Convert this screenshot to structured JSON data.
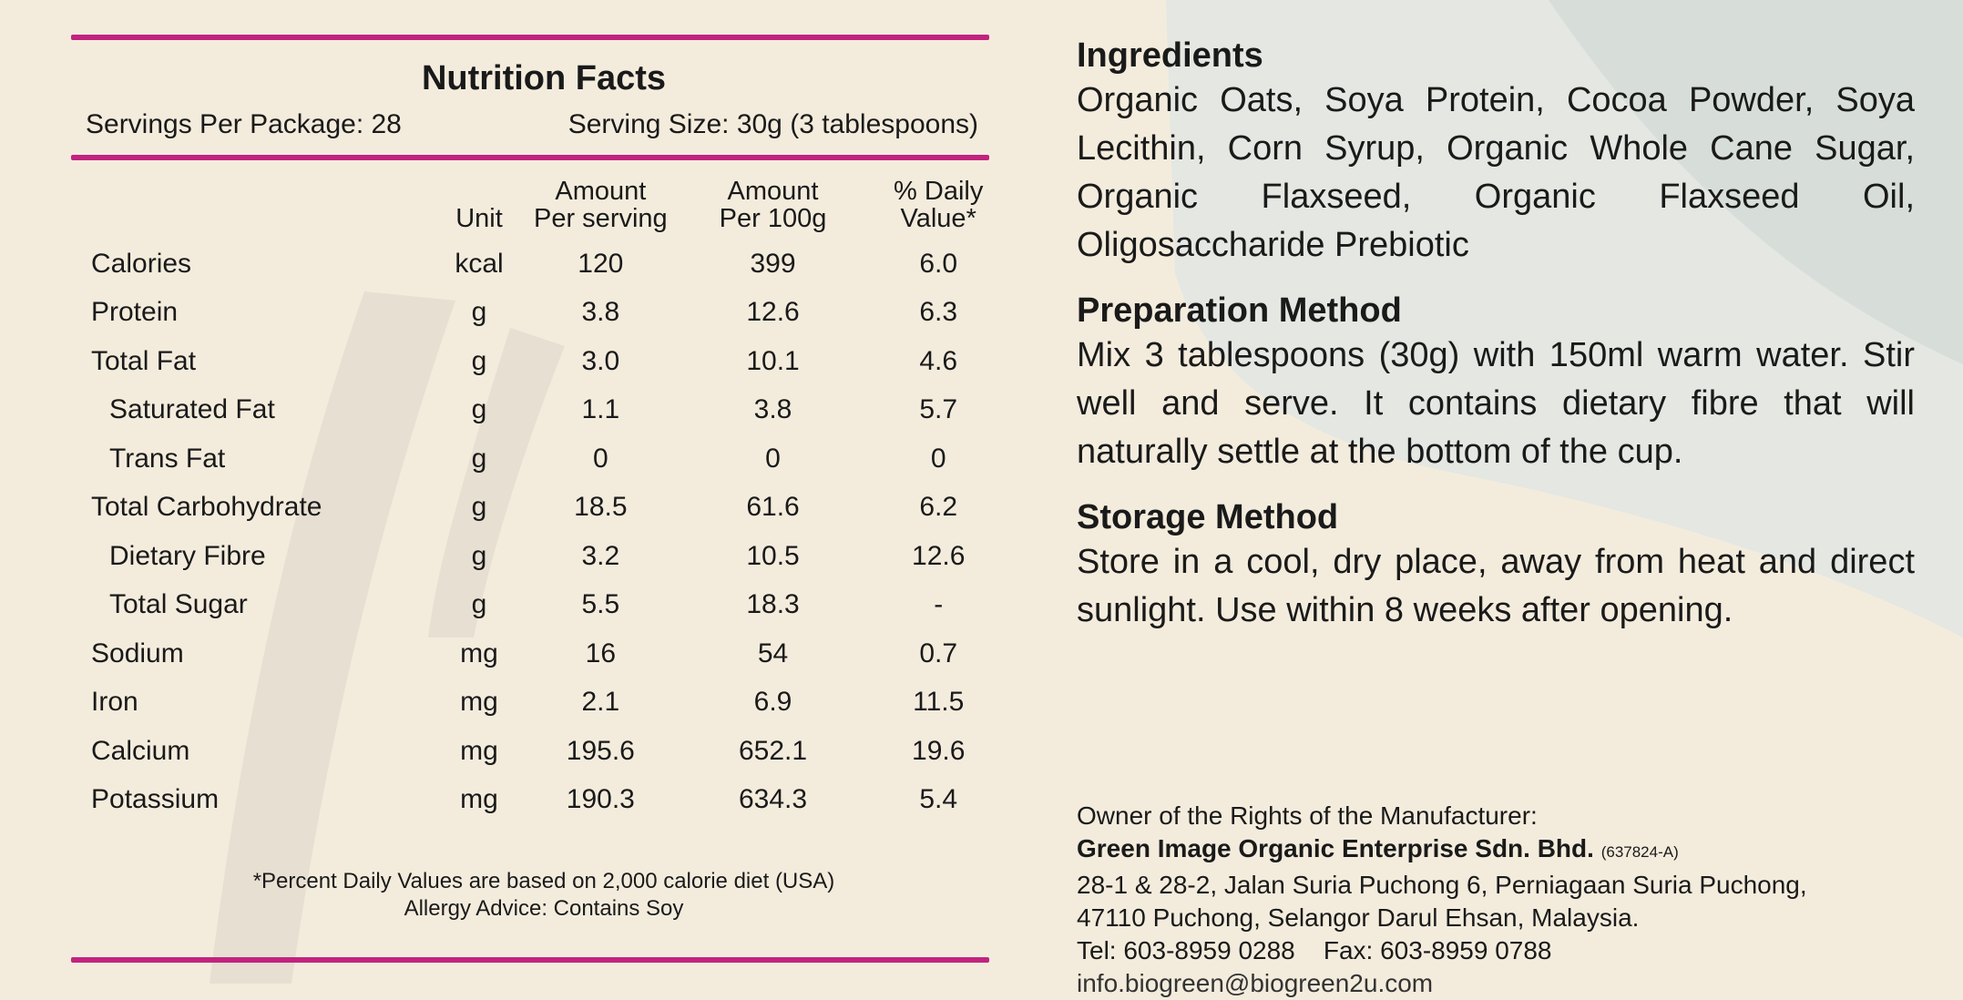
{
  "nutrition": {
    "title": "Nutrition Facts",
    "servings_per_package": "Servings Per Package: 28",
    "serving_size": "Serving Size: 30g (3 tablespoons)",
    "headers": {
      "unit": "Unit",
      "per_serving_line1": "Amount",
      "per_serving_line2": "Per serving",
      "per_100g_line1": "Amount",
      "per_100g_line2": "Per 100g",
      "dv_line1": "% Daily",
      "dv_line2": "Value*"
    },
    "rows": [
      {
        "name": "Calories",
        "unit": "kcal",
        "per_serving": "120",
        "per_100g": "399",
        "dv": "6.0",
        "sub": false
      },
      {
        "name": "Protein",
        "unit": "g",
        "per_serving": "3.8",
        "per_100g": "12.6",
        "dv": "6.3",
        "sub": false
      },
      {
        "name": "Total Fat",
        "unit": "g",
        "per_serving": "3.0",
        "per_100g": "10.1",
        "dv": "4.6",
        "sub": false
      },
      {
        "name": "Saturated Fat",
        "unit": "g",
        "per_serving": "1.1",
        "per_100g": "3.8",
        "dv": "5.7",
        "sub": true
      },
      {
        "name": "Trans Fat",
        "unit": "g",
        "per_serving": "0",
        "per_100g": "0",
        "dv": "0",
        "sub": true
      },
      {
        "name": "Total Carbohydrate",
        "unit": "g",
        "per_serving": "18.5",
        "per_100g": "61.6",
        "dv": "6.2",
        "sub": false
      },
      {
        "name": "Dietary Fibre",
        "unit": "g",
        "per_serving": "3.2",
        "per_100g": "10.5",
        "dv": "12.6",
        "sub": true
      },
      {
        "name": "Total Sugar",
        "unit": "g",
        "per_serving": "5.5",
        "per_100g": "18.3",
        "dv": "-",
        "sub": true
      },
      {
        "name": "Sodium",
        "unit": "mg",
        "per_serving": "16",
        "per_100g": "54",
        "dv": "0.7",
        "sub": false
      },
      {
        "name": "Iron",
        "unit": "mg",
        "per_serving": "2.1",
        "per_100g": "6.9",
        "dv": "11.5",
        "sub": false
      },
      {
        "name": "Calcium",
        "unit": "mg",
        "per_serving": "195.6",
        "per_100g": "652.1",
        "dv": "19.6",
        "sub": false
      },
      {
        "name": "Potassium",
        "unit": "mg",
        "per_serving": "190.3",
        "per_100g": "634.3",
        "dv": "5.4",
        "sub": false
      }
    ],
    "footnote": "*Percent Daily Values are based on 2,000 calorie diet (USA)",
    "allergy": "Allergy Advice: Contains Soy"
  },
  "ingredients": {
    "heading": "Ingredients",
    "text": "Organic Oats, Soya Protein, Cocoa Powder, Soya Lecithin, Corn Syrup, Organic Whole Cane Sugar, Organic Flaxseed, Organic Flaxseed Oil, Oligosaccharide Prebiotic"
  },
  "preparation": {
    "heading": "Preparation Method",
    "text": "Mix 3 tablespoons (30g) with 150ml warm water. Stir well and serve. It contains dietary fibre that will naturally settle at the bottom of the cup."
  },
  "storage": {
    "heading": "Storage Method",
    "text": "Store in a cool, dry place, away from heat and direct sunlight. Use within 8 weeks after opening."
  },
  "manufacturer": {
    "label": "Owner of the Rights of the Manufacturer:",
    "company": "Green Image Organic Enterprise Sdn. Bhd.",
    "reg_no": "(637824-A)",
    "address_line1": "28-1 & 28-2, Jalan Suria Puchong 6, Perniagaan Suria Puchong,",
    "address_line2": "47110 Puchong, Selangor Darul Ehsan, Malaysia.",
    "contact": "Tel: 603-8959 0288    Fax: 603-8959 0788",
    "email": "info.biogreen@biogreen2u.com"
  },
  "colors": {
    "rule": "#c2237f",
    "background": "#f3ecdd"
  }
}
